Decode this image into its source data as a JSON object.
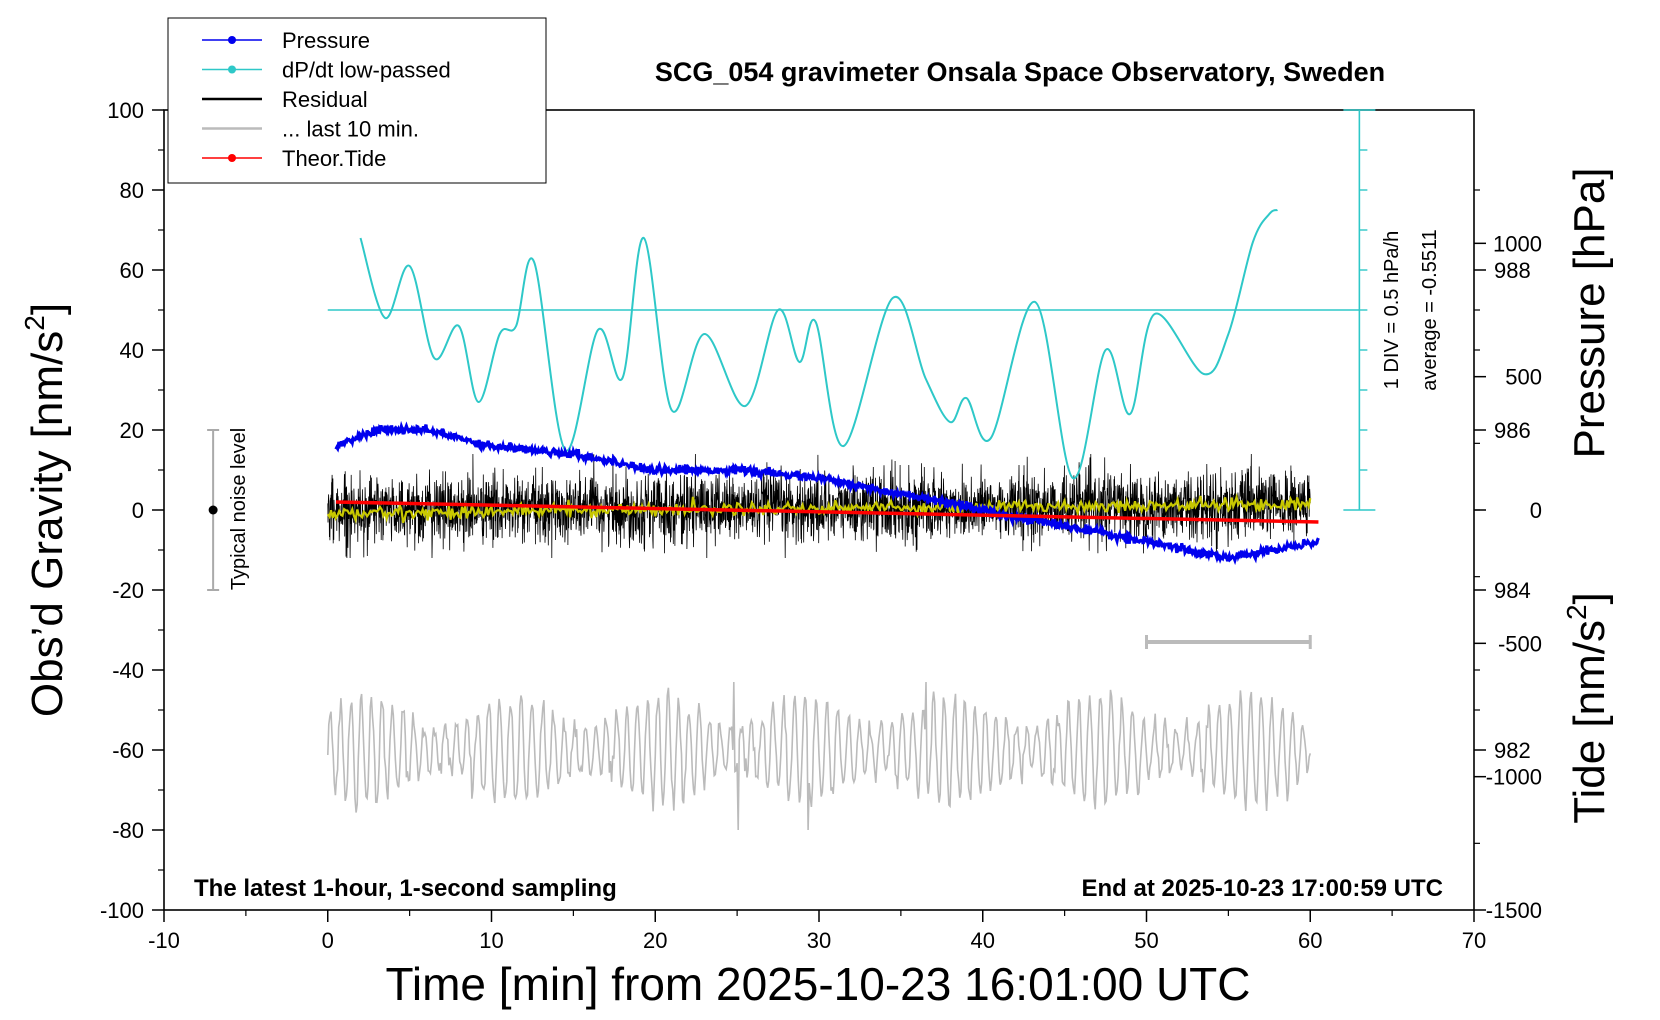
{
  "chart_data": {
    "type": "line",
    "title": "SCG_054 gravimeter Onsala Space Observatory, Sweden",
    "xlabel": "Time [min] from 2025-10-23 16:01:00 UTC",
    "ylabel_left": "Obs’d Gravity [nm/s",
    "ylabel_left_sup": "2",
    "ylabel_left_close": "]",
    "ylabel_right_pressure": "Pressure [hPa]",
    "ylabel_right_tide": "Tide [nm/s",
    "ylabel_right_tide_sup": "2",
    "ylabel_right_tide_close": "]",
    "xlim": [
      -10,
      70
    ],
    "ylim_gravity": [
      -100,
      100
    ],
    "ylim_pressure": [
      980,
      990
    ],
    "ylim_tide": [
      -1500,
      1500
    ],
    "x_ticks": [
      -10,
      0,
      10,
      20,
      30,
      40,
      50,
      60,
      70
    ],
    "y_ticks_gravity": [
      -100,
      -80,
      -60,
      -40,
      -20,
      0,
      20,
      40,
      60,
      80,
      100
    ],
    "y_ticks_pressure": [
      982,
      984,
      986,
      988
    ],
    "y_ticks_tide": [
      -1500,
      -1000,
      -500,
      0,
      500,
      1000
    ],
    "footer_left": "The latest 1-hour, 1-second sampling",
    "footer_right": "End at 2025-10-23 17:00:59 UTC",
    "dpdt_scale_label": "1 DIV = 0.5 hPa/h",
    "dpdt_average_label": "average = -0.5511",
    "noise_label": "Typical noise level",
    "noise_bar": {
      "x": -7,
      "center": 0,
      "half_range": 20
    },
    "last10_bar": {
      "x_start": 50,
      "x_end": 60,
      "y": -33
    },
    "dpdt_scale_bar": {
      "x": 63,
      "y_bottom": 0,
      "y_top": 100,
      "div_gravity_units": 10
    },
    "legend": [
      {
        "label": "Pressure",
        "color": "#0000ee",
        "marker": true
      },
      {
        "label": "dP/dt low-passed",
        "color": "#2ec8c8",
        "marker": true
      },
      {
        "label": "Residual",
        "color": "#000000",
        "marker": false
      },
      {
        "label": "... last 10 min.",
        "color": "#bbbbbb",
        "marker": false
      },
      {
        "label": "Theor.Tide",
        "color": "#ff0000",
        "marker": true
      }
    ],
    "colors": {
      "pressure": "#0000ee",
      "dpdt": "#2ec8c8",
      "residual": "#000000",
      "residual_smooth": "#c8c800",
      "last10": "#bbbbbb",
      "tide": "#ff0000"
    },
    "series": [
      {
        "name": "Pressure",
        "unit": "hPa",
        "axis": "pressure",
        "x": [
          0.5,
          3,
          6,
          10,
          15,
          20,
          25,
          30,
          35,
          40,
          45,
          50,
          55,
          60.5
        ],
        "values": [
          985.8,
          986.0,
          986.0,
          985.8,
          985.7,
          985.5,
          985.5,
          985.4,
          985.2,
          985.0,
          984.8,
          984.6,
          984.4,
          984.6
        ]
      },
      {
        "name": "dP/dt low-passed",
        "unit": "nm/s2 scale",
        "axis": "gravity",
        "baseline": 50,
        "x": [
          2,
          3.5,
          5,
          6.5,
          8,
          9.2,
          10.5,
          11.5,
          12.6,
          14.5,
          16.5,
          18,
          19.3,
          21,
          23,
          25.5,
          27.5,
          28.8,
          29.8,
          31.5,
          34.5,
          36.5,
          38,
          39,
          40.5,
          43.2,
          45.5,
          47.5,
          49,
          50.5,
          53.5,
          55,
          56.5,
          57.5,
          58
        ],
        "values": [
          68,
          48,
          61,
          38,
          46,
          27,
          44,
          46,
          62,
          15,
          45,
          33,
          68,
          25,
          44,
          26,
          50,
          37,
          47,
          16,
          53,
          33,
          22,
          28,
          18,
          52,
          8,
          40,
          24,
          49,
          34,
          44,
          67,
          74,
          75
        ]
      },
      {
        "name": "Residual",
        "unit": "nm/s2",
        "axis": "gravity",
        "x_range": [
          0,
          60
        ],
        "envelope": [
          -12,
          14
        ],
        "smoothed_mean": [
          [
            0,
            -1
          ],
          [
            15,
            0
          ],
          [
            30,
            0.5
          ],
          [
            45,
            1
          ],
          [
            60,
            1.5
          ]
        ]
      },
      {
        "name": "... last 10 min.",
        "unit": "nm/s2",
        "axis": "gravity",
        "x_range": [
          0,
          60
        ],
        "center": -60,
        "envelope": [
          -80,
          -43
        ]
      },
      {
        "name": "Theor.Tide",
        "unit": "nm/s2",
        "axis": "tide",
        "x": [
          0.5,
          60.5
        ],
        "values": [
          30,
          -45
        ]
      }
    ]
  }
}
